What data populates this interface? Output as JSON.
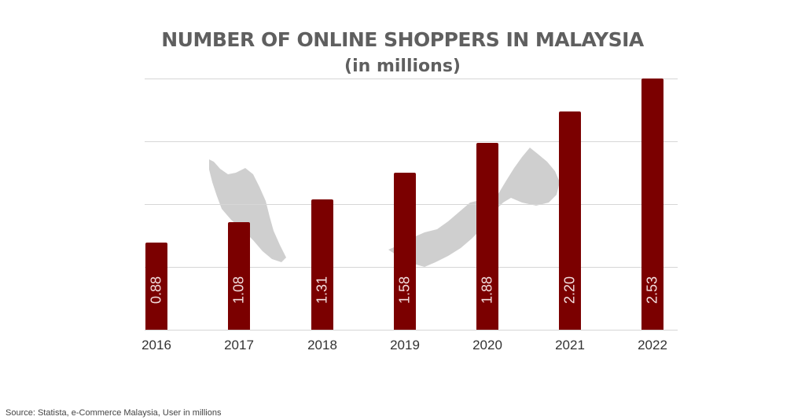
{
  "title": "NUMBER OF ONLINE SHOPPERS IN MALAYSIA",
  "subtitle": "(in millions)",
  "source": "Source: Statista, e-Commerce Malaysia, User in millions",
  "colors": {
    "bar": "#7b0000",
    "grid": "#d6d6d6",
    "map": "#cfcfcf",
    "title": "#5f5f5f"
  },
  "chart_data": {
    "type": "bar",
    "title": "NUMBER OF ONLINE SHOPPERS IN MALAYSIA",
    "subtitle": "(in millions)",
    "categories": [
      "2016",
      "2017",
      "2018",
      "2019",
      "2020",
      "2021",
      "2022"
    ],
    "values": [
      0.88,
      1.08,
      1.31,
      1.58,
      1.88,
      2.2,
      2.53
    ],
    "value_labels": [
      "0.88",
      "1.08",
      "1.31",
      "1.58",
      "1.88",
      "2.20",
      "2.53"
    ],
    "xlabel": "",
    "ylabel": "",
    "ylim": [
      0,
      2.53
    ],
    "grid": true,
    "gridlines": 4,
    "legend": null,
    "background_image": "Malaysia map silhouette (grey)"
  }
}
